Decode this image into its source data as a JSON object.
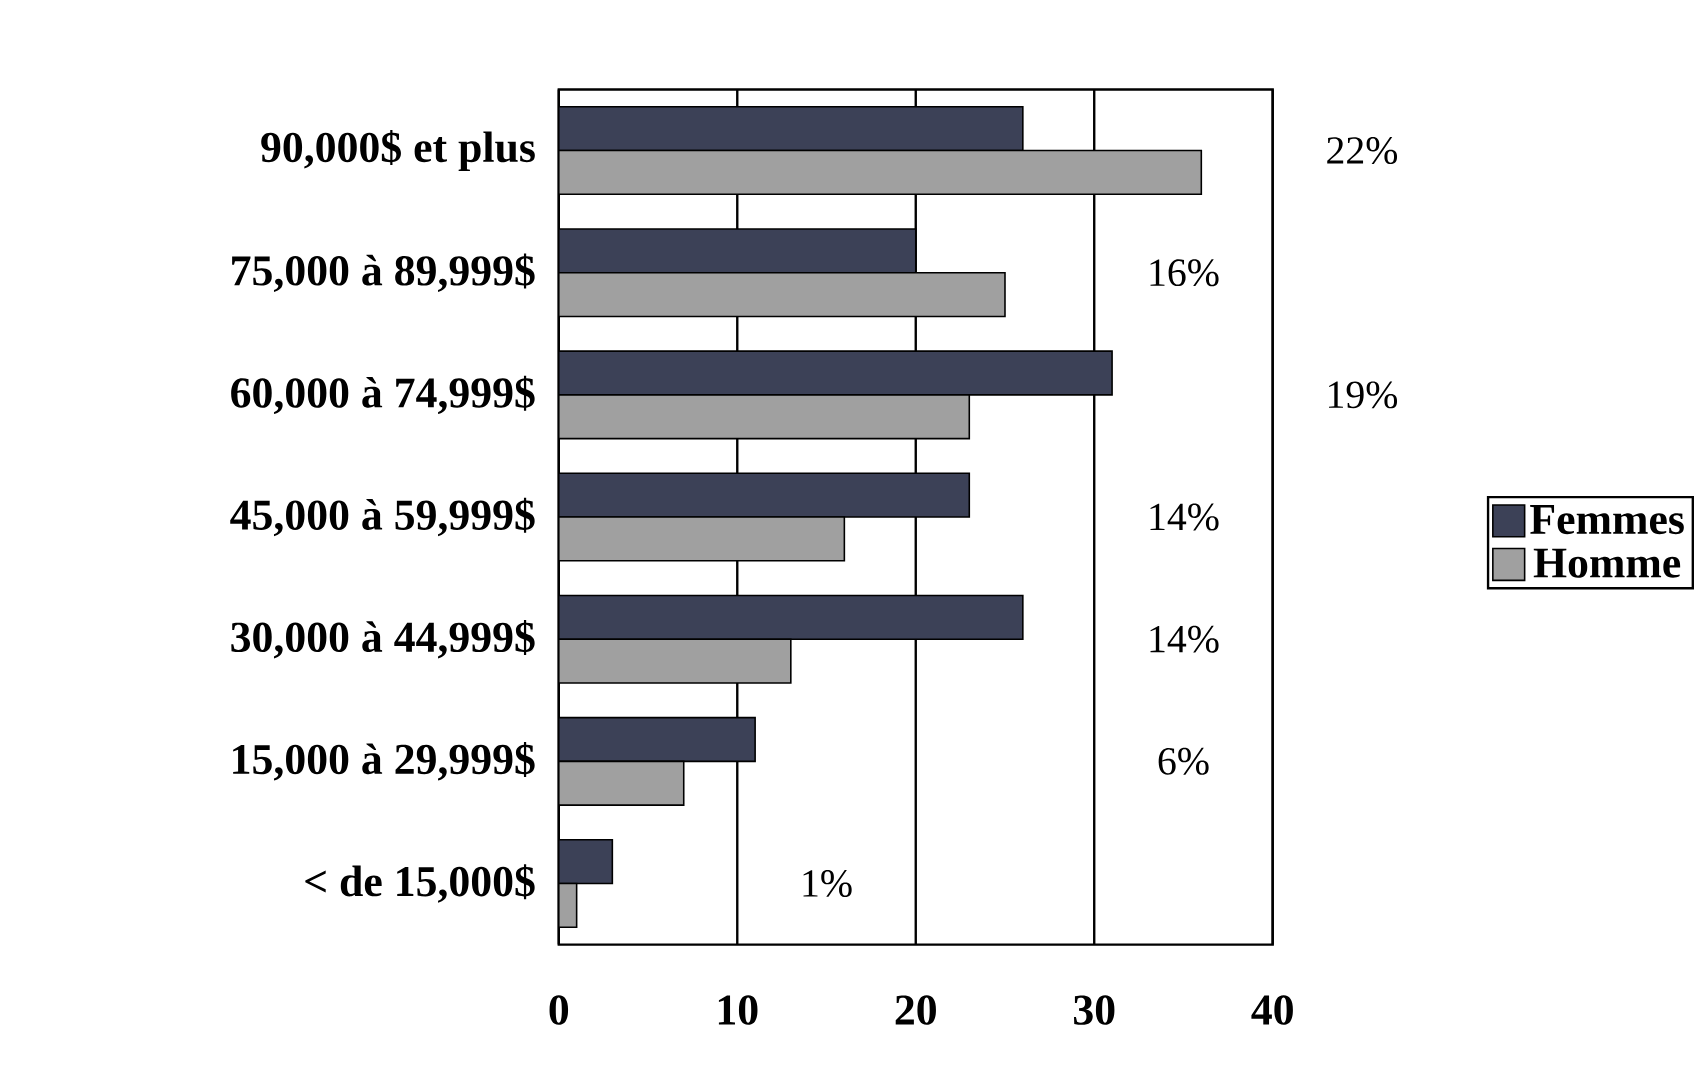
{
  "chart_data": {
    "type": "bar",
    "orientation": "horizontal",
    "categories": [
      "90,000$ et plus",
      "75,000 à 89,999$",
      "60,000 à 74,999$",
      "45,000 à 59,999$",
      "30,000 à 44,999$",
      "15,000 à 29,999$",
      "< de 15,000$"
    ],
    "series": [
      {
        "name": "Femmes",
        "color": "#3c4157",
        "values": [
          26,
          20,
          31,
          23,
          26,
          11,
          3
        ]
      },
      {
        "name": "Homme",
        "color": "#a0a0a0",
        "values": [
          36,
          25,
          23,
          16,
          13,
          7,
          1
        ]
      }
    ],
    "xlim": [
      0,
      40
    ],
    "xticks": [
      0,
      10,
      20,
      30,
      40
    ],
    "grid": "x",
    "legend": "right",
    "annotations": [
      "22%",
      "16%",
      "19%",
      "14%",
      "14%",
      "6%",
      "1%"
    ]
  }
}
